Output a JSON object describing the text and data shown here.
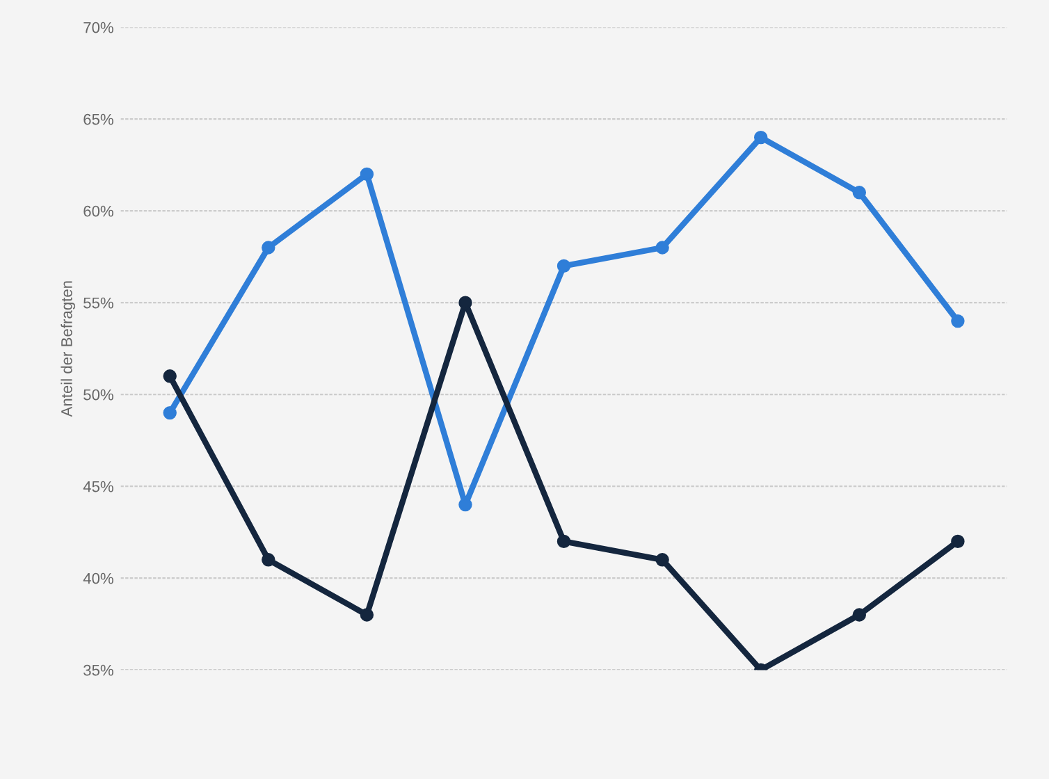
{
  "chart_data": {
    "type": "line",
    "ylabel": "Anteil der Befragten",
    "categories": [
      null,
      null,
      null,
      null,
      null,
      null,
      null,
      null,
      null
    ],
    "series": [
      {
        "color": "#2f7ed8",
        "values": [
          49,
          58,
          62,
          44,
          57,
          58,
          64,
          61,
          54
        ]
      },
      {
        "color": "#14263e",
        "values": [
          51,
          41,
          38,
          55,
          42,
          41,
          35,
          38,
          42
        ]
      }
    ],
    "ylim": [
      35,
      70
    ],
    "yticks": [
      {
        "value": 35,
        "label": "35%"
      },
      {
        "value": 40,
        "label": "40%"
      },
      {
        "value": 45,
        "label": "45%"
      },
      {
        "value": 50,
        "label": "50%"
      },
      {
        "value": 55,
        "label": "55%"
      },
      {
        "value": 60,
        "label": "60%"
      },
      {
        "value": 65,
        "label": "65%"
      },
      {
        "value": 70,
        "label": "70%"
      }
    ],
    "grid": "y",
    "marker": "circle",
    "line_style": "solid",
    "tick_labels": "y"
  }
}
